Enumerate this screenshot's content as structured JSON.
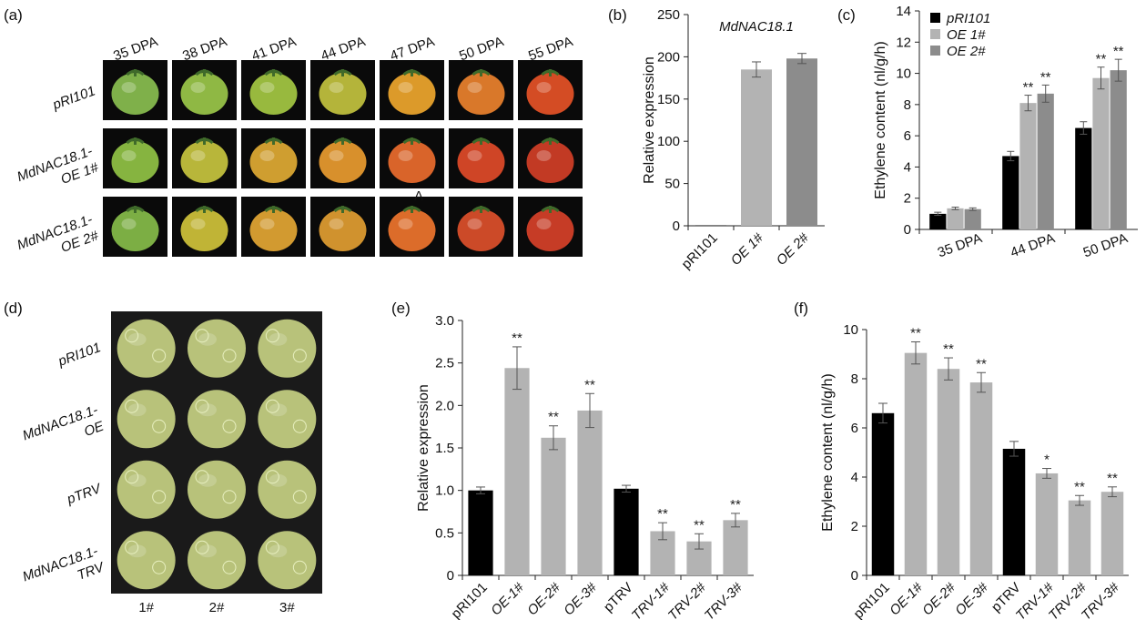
{
  "panels": {
    "a": "(a)",
    "b": "(b)",
    "c": "(c)",
    "d": "(d)",
    "e": "(e)",
    "f": "(f)"
  },
  "photos_a": {
    "columns": [
      "35 DPA",
      "38 DPA",
      "41 DPA",
      "44 DPA",
      "47 DPA",
      "50 DPA",
      "55 DPA"
    ],
    "rows": [
      {
        "lines": [
          "pRI101"
        ]
      },
      {
        "lines": [
          "MdNAC18.1-",
          "OE 1#"
        ]
      },
      {
        "lines": [
          "MdNAC18.1-",
          "OE 2#"
        ]
      }
    ],
    "overlay_letter": "A",
    "colors": [
      [
        "#7fb04a",
        "#8fb844",
        "#98b93e",
        "#b4b43a",
        "#dc9a2a",
        "#d9782a",
        "#d44c24"
      ],
      [
        "#86b440",
        "#b8b63a",
        "#cf9e30",
        "#d8902c",
        "#d9642a",
        "#cf4526",
        "#c23a24"
      ],
      [
        "#7cae44",
        "#c0b436",
        "#d29a30",
        "#d0922e",
        "#dc6c2a",
        "#cc4a28",
        "#c63c26"
      ]
    ]
  },
  "photos_d": {
    "rows": [
      {
        "lines": [
          "pRI101"
        ]
      },
      {
        "lines": [
          "MdNAC18.1-",
          "OE"
        ]
      },
      {
        "lines": [
          "pTRV"
        ]
      },
      {
        "lines": [
          "MdNAC18.1-",
          "TRV"
        ]
      }
    ],
    "columns": [
      "1#",
      "2#",
      "3#"
    ],
    "apple_color": "#b8c27a"
  },
  "chart_data": [
    {
      "id": "b",
      "type": "bar",
      "title": "MdNAC18.1",
      "ylabel": "Relative expression",
      "xlabel": "",
      "ylim": [
        0,
        250
      ],
      "yticks": [
        0,
        50,
        100,
        150,
        200,
        250
      ],
      "categories": [
        "pRI101",
        "OE 1#",
        "OE 2#"
      ],
      "italic_categories": [
        false,
        true,
        true
      ],
      "values": [
        0.5,
        185,
        198
      ],
      "errors": [
        0,
        9,
        6
      ],
      "colors": [
        "#000000",
        "#b3b3b3",
        "#8c8c8c"
      ]
    },
    {
      "id": "c",
      "type": "bar",
      "title": "",
      "ylabel": "Ethylene content (nl/g/h)",
      "xlabel": "",
      "ylim": [
        0,
        14
      ],
      "yticks": [
        0,
        2,
        4,
        6,
        8,
        10,
        12,
        14
      ],
      "categories": [
        "35 DPA",
        "44 DPA",
        "50 DPA"
      ],
      "legend_position": "top-left",
      "series": [
        {
          "name": "pRI101",
          "color": "#000000",
          "values": [
            1.0,
            4.7,
            6.5
          ],
          "errors": [
            0.1,
            0.3,
            0.4
          ],
          "sig": [
            "",
            "",
            ""
          ]
        },
        {
          "name": "OE 1#",
          "color": "#b3b3b3",
          "values": [
            1.35,
            8.1,
            9.7
          ],
          "errors": [
            0.08,
            0.5,
            0.7
          ],
          "sig": [
            "",
            "**",
            "**"
          ]
        },
        {
          "name": "OE 2#",
          "color": "#8c8c8c",
          "values": [
            1.3,
            8.7,
            10.2
          ],
          "errors": [
            0.08,
            0.55,
            0.7
          ],
          "sig": [
            "",
            "**",
            "**"
          ]
        }
      ]
    },
    {
      "id": "e",
      "type": "bar",
      "title": "",
      "ylabel": "Relative expression",
      "xlabel": "",
      "ylim": [
        0,
        3.0
      ],
      "yticks": [
        0,
        0.5,
        1.0,
        1.5,
        2.0,
        2.5,
        3.0
      ],
      "ytick_labels": [
        "0",
        "0.5",
        "1.0",
        "1.5",
        "2.0",
        "2.5",
        "3.0"
      ],
      "categories": [
        "pRI101",
        "OE-1#",
        "OE-2#",
        "OE-3#",
        "pTRV",
        "TRV-1#",
        "TRV-2#",
        "TRV-3#"
      ],
      "italic_categories": [
        false,
        true,
        true,
        true,
        false,
        true,
        true,
        true
      ],
      "values": [
        1.0,
        2.44,
        1.62,
        1.94,
        1.02,
        0.52,
        0.4,
        0.65
      ],
      "errors": [
        0.04,
        0.25,
        0.14,
        0.2,
        0.04,
        0.1,
        0.09,
        0.08
      ],
      "colors": [
        "#000000",
        "#b3b3b3",
        "#b3b3b3",
        "#b3b3b3",
        "#000000",
        "#b3b3b3",
        "#b3b3b3",
        "#b3b3b3"
      ],
      "sig": [
        "",
        "**",
        "**",
        "**",
        "",
        "**",
        "**",
        "**"
      ]
    },
    {
      "id": "f",
      "type": "bar",
      "title": "",
      "ylabel": "Ethylene content (nl/g/h)",
      "xlabel": "",
      "ylim": [
        0,
        10
      ],
      "yticks": [
        0,
        2,
        4,
        6,
        8,
        10
      ],
      "categories": [
        "pRI101",
        "OE-1#",
        "OE-2#",
        "OE-3#",
        "pTRV",
        "TRV-1#",
        "TRV-2#",
        "TRV-3#"
      ],
      "italic_categories": [
        false,
        true,
        true,
        true,
        false,
        true,
        true,
        true
      ],
      "values": [
        6.6,
        9.05,
        8.4,
        7.85,
        5.15,
        4.15,
        3.05,
        3.4
      ],
      "errors": [
        0.4,
        0.45,
        0.45,
        0.4,
        0.3,
        0.2,
        0.2,
        0.2
      ],
      "colors": [
        "#000000",
        "#b3b3b3",
        "#b3b3b3",
        "#b3b3b3",
        "#000000",
        "#b3b3b3",
        "#b3b3b3",
        "#b3b3b3"
      ],
      "sig": [
        "",
        "**",
        "**",
        "**",
        "",
        "*",
        "**",
        "**"
      ]
    }
  ]
}
